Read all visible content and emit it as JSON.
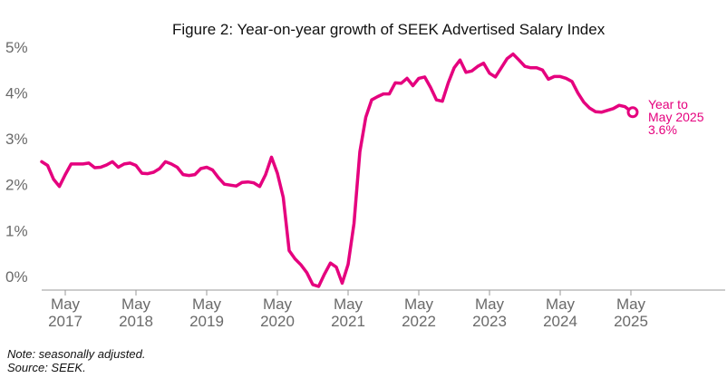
{
  "chart_data": {
    "type": "line",
    "title": "Figure 2: Year-on-year growth of SEEK Advertised Salary Index",
    "xlabel": "",
    "ylabel": "",
    "ylim": [
      -0.3,
      5.0
    ],
    "y_ticks": [
      "0%",
      "1%",
      "2%",
      "3%",
      "4%",
      "5%"
    ],
    "y_tick_values": [
      0,
      1,
      2,
      3,
      4,
      5
    ],
    "x_ticks": [
      {
        "month": "May",
        "year": "2017"
      },
      {
        "month": "May",
        "year": "2018"
      },
      {
        "month": "May",
        "year": "2019"
      },
      {
        "month": "May",
        "year": "2020"
      },
      {
        "month": "May",
        "year": "2021"
      },
      {
        "month": "May",
        "year": "2022"
      },
      {
        "month": "May",
        "year": "2023"
      },
      {
        "month": "May",
        "year": "2024"
      },
      {
        "month": "May",
        "year": "2025"
      }
    ],
    "x_tick_dates": [
      "2017-05",
      "2018-05",
      "2019-05",
      "2020-05",
      "2021-05",
      "2022-05",
      "2023-05",
      "2024-05",
      "2025-05"
    ],
    "x_range": [
      "2017-01",
      "2026-09"
    ],
    "grid": false,
    "color": "#e5007e",
    "series": [
      {
        "x": [
          "2017-01",
          "2017-02",
          "2017-03",
          "2017-04",
          "2017-05",
          "2017-06",
          "2017-07",
          "2017-08",
          "2017-09",
          "2017-10",
          "2017-11",
          "2017-12",
          "2018-01",
          "2018-02",
          "2018-03",
          "2018-04",
          "2018-05",
          "2018-06",
          "2018-07",
          "2018-08",
          "2018-09",
          "2018-10",
          "2018-11",
          "2018-12",
          "2019-01",
          "2019-02",
          "2019-03",
          "2019-04",
          "2019-05",
          "2019-06",
          "2019-07",
          "2019-08",
          "2019-09",
          "2019-10",
          "2019-11",
          "2019-12",
          "2020-01",
          "2020-02",
          "2020-03",
          "2020-04",
          "2020-05",
          "2020-06",
          "2020-07",
          "2020-08",
          "2020-09",
          "2020-10",
          "2020-11",
          "2020-12",
          "2021-01",
          "2021-02",
          "2021-03",
          "2021-04",
          "2021-05",
          "2021-06",
          "2021-07",
          "2021-08",
          "2021-09",
          "2021-10",
          "2021-11",
          "2021-12",
          "2022-01",
          "2022-02",
          "2022-03",
          "2022-04",
          "2022-05",
          "2022-06",
          "2022-07",
          "2022-08",
          "2022-09",
          "2022-10",
          "2022-11",
          "2022-12",
          "2023-01",
          "2023-02",
          "2023-03",
          "2023-04",
          "2023-05",
          "2023-06",
          "2023-07",
          "2023-08",
          "2023-09",
          "2023-10",
          "2023-11",
          "2023-12",
          "2024-01",
          "2024-02",
          "2024-03",
          "2024-04",
          "2024-05",
          "2024-06",
          "2024-07",
          "2024-08",
          "2024-09",
          "2024-10",
          "2024-11",
          "2024-12",
          "2025-01",
          "2025-02",
          "2025-03",
          "2025-04",
          "2025-05"
        ],
        "values": [
          2.5,
          2.42,
          2.12,
          1.96,
          2.22,
          2.45,
          2.45,
          2.45,
          2.47,
          2.37,
          2.38,
          2.43,
          2.5,
          2.38,
          2.45,
          2.47,
          2.42,
          2.25,
          2.24,
          2.27,
          2.35,
          2.5,
          2.45,
          2.38,
          2.22,
          2.2,
          2.22,
          2.35,
          2.38,
          2.32,
          2.15,
          2.01,
          1.99,
          1.97,
          2.05,
          2.06,
          2.04,
          1.96,
          2.22,
          2.6,
          2.25,
          1.72,
          0.56,
          0.38,
          0.25,
          0.08,
          -0.18,
          -0.22,
          0.05,
          0.29,
          0.2,
          -0.15,
          0.26,
          1.15,
          2.72,
          3.47,
          3.85,
          3.92,
          3.98,
          3.98,
          4.22,
          4.21,
          4.32,
          4.16,
          4.32,
          4.35,
          4.12,
          3.85,
          3.82,
          4.22,
          4.55,
          4.72,
          4.45,
          4.48,
          4.58,
          4.65,
          4.43,
          4.35,
          4.55,
          4.75,
          4.85,
          4.72,
          4.58,
          4.55,
          4.55,
          4.5,
          4.3,
          4.36,
          4.36,
          4.32,
          4.25,
          4.0,
          3.8,
          3.67,
          3.59,
          3.58,
          3.62,
          3.66,
          3.73,
          3.7,
          3.6
        ]
      }
    ],
    "annotation": {
      "lines": [
        "Year to",
        "May 2025",
        "3.6%"
      ]
    }
  },
  "notes": [
    "Note: seasonally adjusted.",
    "Source: SEEK."
  ]
}
